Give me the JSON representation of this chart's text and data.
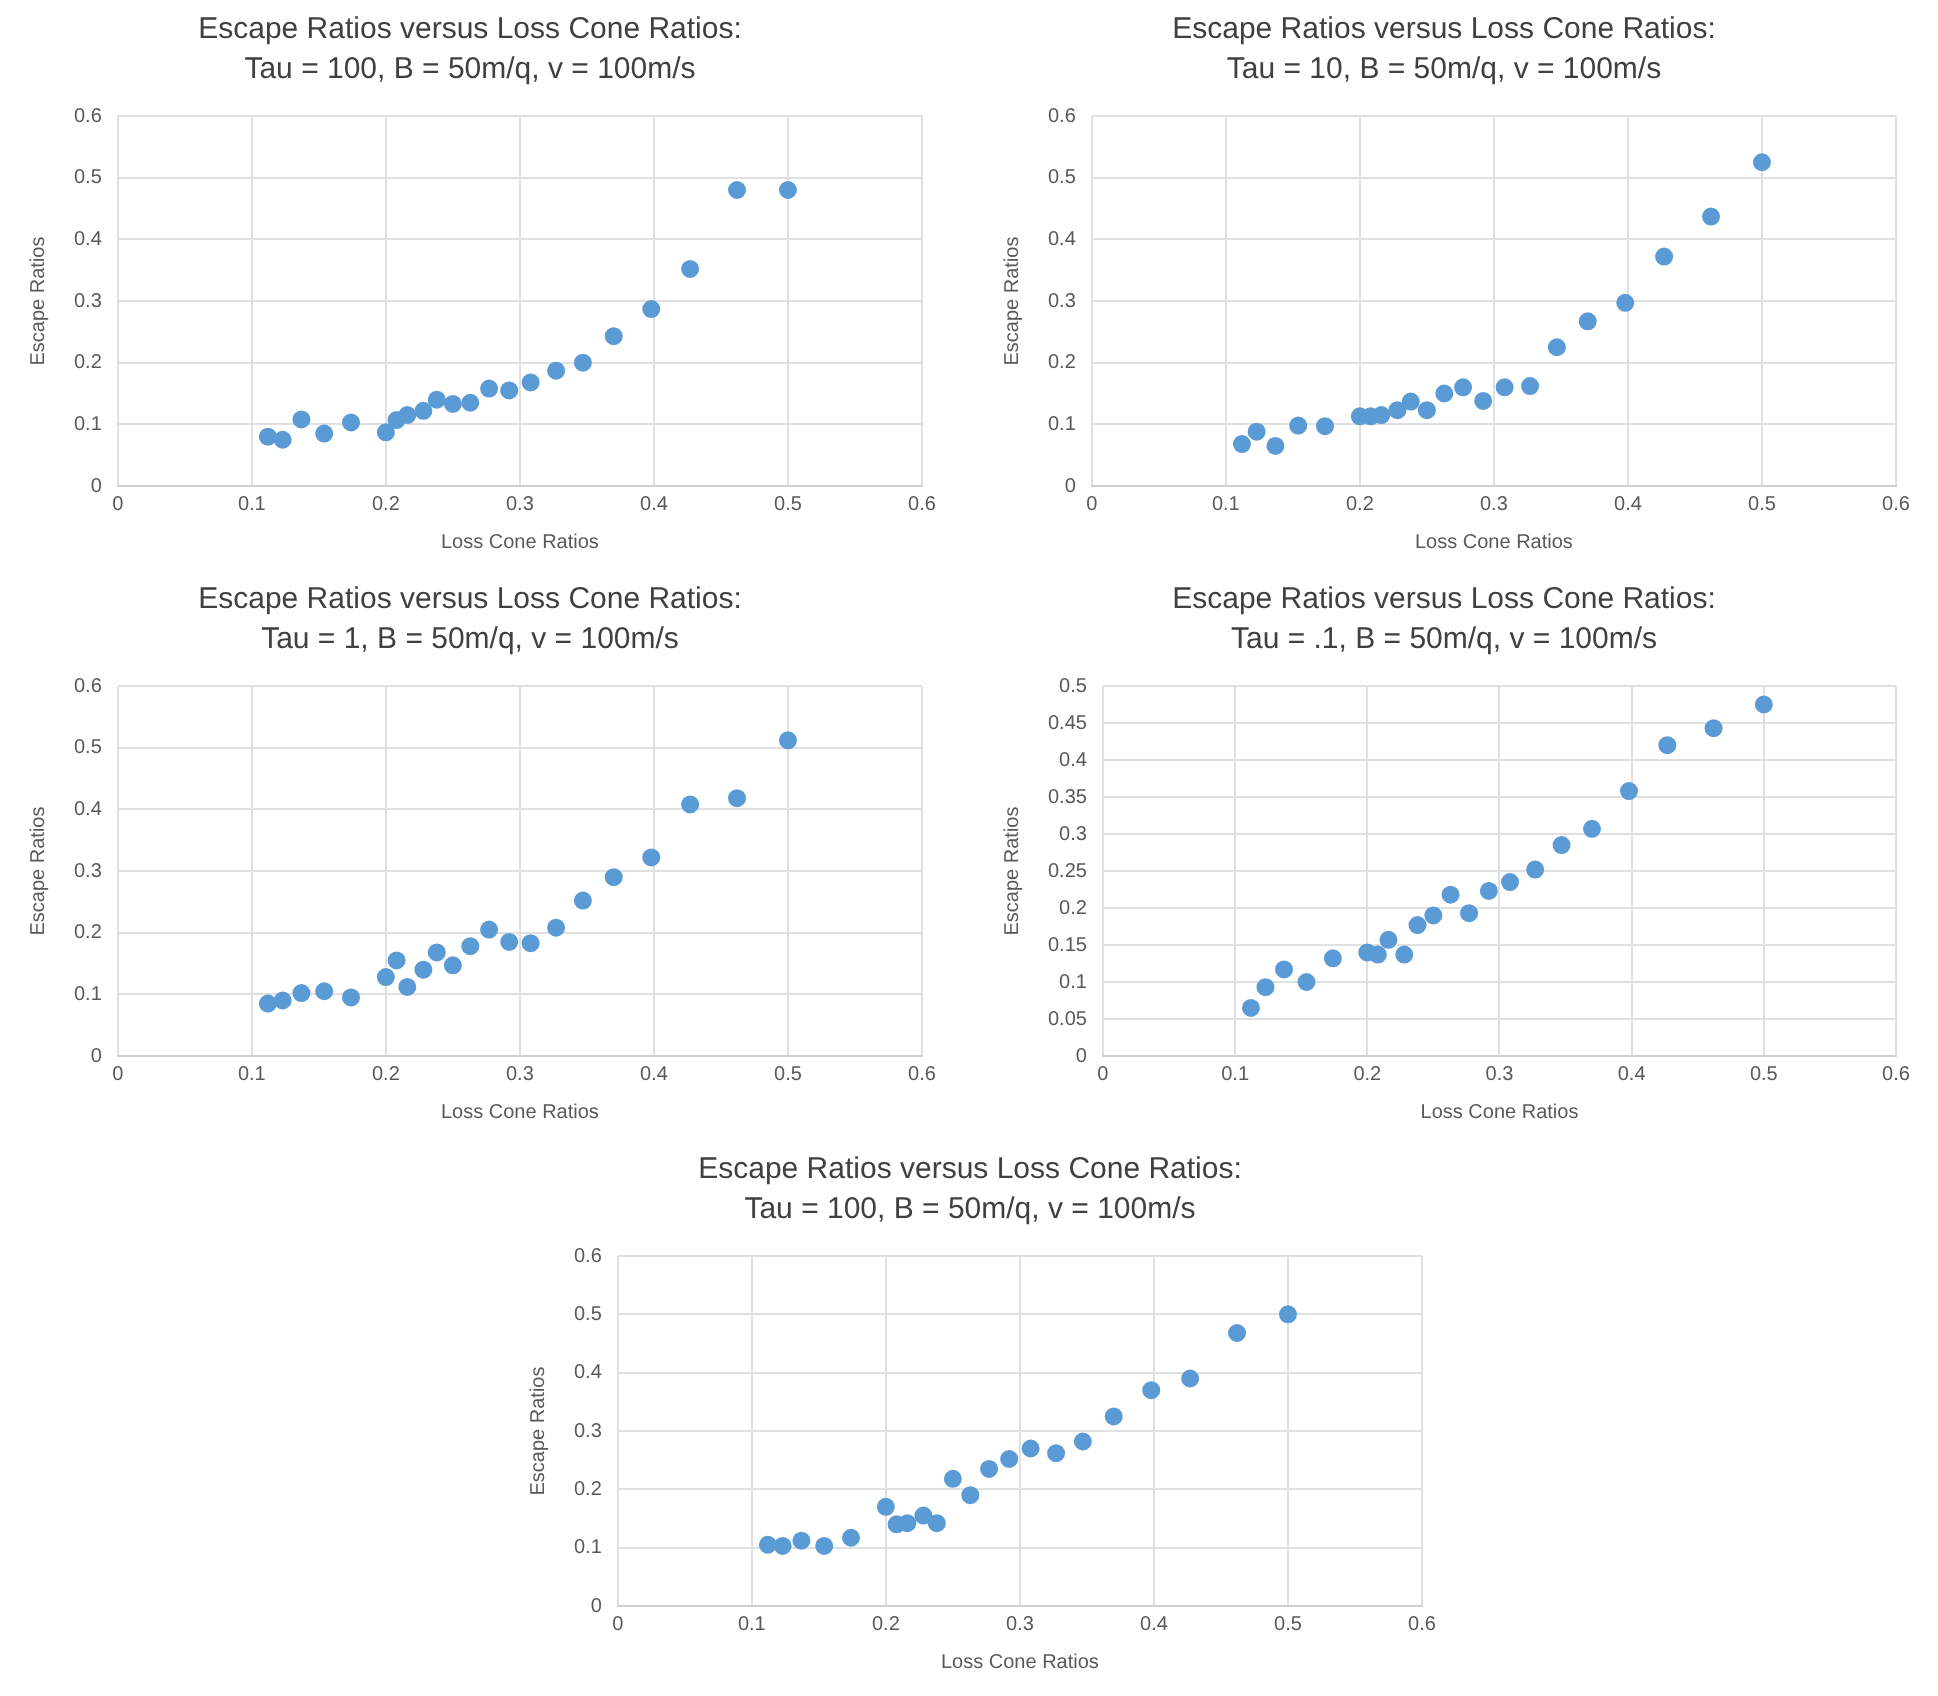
{
  "chart_data": [
    {
      "type": "scatter",
      "title": "Escape Ratios versus Loss Cone Ratios:",
      "subtitle": "Tau = 100, B = 50m/q, v = 100m/s",
      "xlabel": "Loss Cone Ratios",
      "ylabel": "Escape Ratios",
      "color": "#5b9bd5",
      "marker": "circle",
      "grid": true,
      "xlim": [
        0,
        0.6
      ],
      "xticks": [
        0,
        0.1,
        0.2,
        0.3,
        0.4,
        0.5,
        0.6
      ],
      "ylim": [
        0,
        0.6
      ],
      "yticks": [
        0,
        0.1,
        0.2,
        0.3,
        0.4,
        0.5,
        0.6
      ],
      "x": [
        0.112,
        0.123,
        0.137,
        0.154,
        0.174,
        0.2,
        0.208,
        0.216,
        0.228,
        0.238,
        0.25,
        0.263,
        0.277,
        0.292,
        0.308,
        0.327,
        0.347,
        0.37,
        0.398,
        0.427,
        0.462,
        0.5
      ],
      "values": [
        0.08,
        0.075,
        0.108,
        0.085,
        0.103,
        0.087,
        0.107,
        0.115,
        0.122,
        0.14,
        0.133,
        0.135,
        0.158,
        0.155,
        0.168,
        0.187,
        0.2,
        0.243,
        0.287,
        0.352,
        0.48,
        0.48
      ]
    },
    {
      "type": "scatter",
      "title": "Escape Ratios versus Loss Cone Ratios:",
      "subtitle": "Tau = 10, B = 50m/q, v = 100m/s",
      "xlabel": "Loss Cone Ratios",
      "ylabel": "Escape Ratios",
      "color": "#5b9bd5",
      "marker": "circle",
      "grid": true,
      "xlim": [
        0,
        0.6
      ],
      "xticks": [
        0,
        0.1,
        0.2,
        0.3,
        0.4,
        0.5,
        0.6
      ],
      "ylim": [
        0,
        0.6
      ],
      "yticks": [
        0,
        0.1,
        0.2,
        0.3,
        0.4,
        0.5,
        0.6
      ],
      "x": [
        0.112,
        0.123,
        0.137,
        0.154,
        0.174,
        0.2,
        0.208,
        0.216,
        0.228,
        0.238,
        0.25,
        0.263,
        0.277,
        0.292,
        0.308,
        0.327,
        0.347,
        0.37,
        0.398,
        0.427,
        0.462,
        0.5
      ],
      "values": [
        0.068,
        0.088,
        0.065,
        0.098,
        0.097,
        0.113,
        0.113,
        0.115,
        0.123,
        0.137,
        0.123,
        0.15,
        0.16,
        0.138,
        0.16,
        0.162,
        0.225,
        0.267,
        0.297,
        0.372,
        0.437,
        0.525
      ]
    },
    {
      "type": "scatter",
      "title": "Escape Ratios versus Loss Cone Ratios:",
      "subtitle": "Tau = 1, B = 50m/q, v = 100m/s",
      "xlabel": "Loss Cone Ratios",
      "ylabel": "Escape Ratios",
      "color": "#5b9bd5",
      "marker": "circle",
      "grid": true,
      "xlim": [
        0,
        0.6
      ],
      "xticks": [
        0,
        0.1,
        0.2,
        0.3,
        0.4,
        0.5,
        0.6
      ],
      "ylim": [
        0,
        0.6
      ],
      "yticks": [
        0,
        0.1,
        0.2,
        0.3,
        0.4,
        0.5,
        0.6
      ],
      "x": [
        0.112,
        0.123,
        0.137,
        0.154,
        0.174,
        0.2,
        0.208,
        0.216,
        0.228,
        0.238,
        0.25,
        0.263,
        0.277,
        0.292,
        0.308,
        0.327,
        0.347,
        0.37,
        0.398,
        0.427,
        0.462,
        0.5
      ],
      "values": [
        0.085,
        0.09,
        0.102,
        0.105,
        0.095,
        0.128,
        0.155,
        0.112,
        0.14,
        0.168,
        0.147,
        0.178,
        0.205,
        0.185,
        0.183,
        0.208,
        0.252,
        0.29,
        0.322,
        0.408,
        0.418,
        0.512
      ]
    },
    {
      "type": "scatter",
      "title": "Escape Ratios versus Loss Cone Ratios:",
      "subtitle": "Tau = .1, B = 50m/q, v = 100m/s",
      "xlabel": "Loss Cone Ratios",
      "ylabel": "Escape Ratios",
      "color": "#5b9bd5",
      "marker": "circle",
      "grid": true,
      "xlim": [
        0,
        0.6
      ],
      "xticks": [
        0,
        0.1,
        0.2,
        0.3,
        0.4,
        0.5,
        0.6
      ],
      "ylim": [
        0,
        0.5
      ],
      "yticks": [
        0,
        0.05,
        0.1,
        0.15,
        0.2,
        0.25,
        0.3,
        0.35,
        0.4,
        0.45,
        0.5
      ],
      "x": [
        0.112,
        0.123,
        0.137,
        0.154,
        0.174,
        0.2,
        0.208,
        0.216,
        0.228,
        0.238,
        0.25,
        0.263,
        0.277,
        0.292,
        0.308,
        0.327,
        0.347,
        0.37,
        0.398,
        0.427,
        0.462,
        0.5
      ],
      "values": [
        0.065,
        0.093,
        0.117,
        0.1,
        0.132,
        0.14,
        0.137,
        0.157,
        0.137,
        0.177,
        0.19,
        0.218,
        0.193,
        0.223,
        0.235,
        0.252,
        0.285,
        0.307,
        0.358,
        0.42,
        0.443,
        0.475
      ]
    },
    {
      "type": "scatter",
      "title": "Escape Ratios versus Loss Cone Ratios:",
      "subtitle": "Tau = 100, B = 50m/q, v = 100m/s",
      "xlabel": "Loss Cone Ratios",
      "ylabel": "Escape Ratios",
      "color": "#5b9bd5",
      "marker": "circle",
      "grid": true,
      "xlim": [
        0,
        0.6
      ],
      "xticks": [
        0,
        0.1,
        0.2,
        0.3,
        0.4,
        0.5,
        0.6
      ],
      "ylim": [
        0,
        0.6
      ],
      "yticks": [
        0,
        0.1,
        0.2,
        0.3,
        0.4,
        0.5,
        0.6
      ],
      "x": [
        0.112,
        0.123,
        0.137,
        0.154,
        0.174,
        0.2,
        0.208,
        0.216,
        0.228,
        0.238,
        0.25,
        0.263,
        0.277,
        0.292,
        0.308,
        0.327,
        0.347,
        0.37,
        0.398,
        0.427,
        0.462,
        0.5
      ],
      "values": [
        0.105,
        0.103,
        0.112,
        0.103,
        0.117,
        0.17,
        0.14,
        0.142,
        0.155,
        0.142,
        0.218,
        0.19,
        0.235,
        0.252,
        0.27,
        0.262,
        0.282,
        0.325,
        0.37,
        0.39,
        0.468,
        0.5
      ]
    }
  ]
}
